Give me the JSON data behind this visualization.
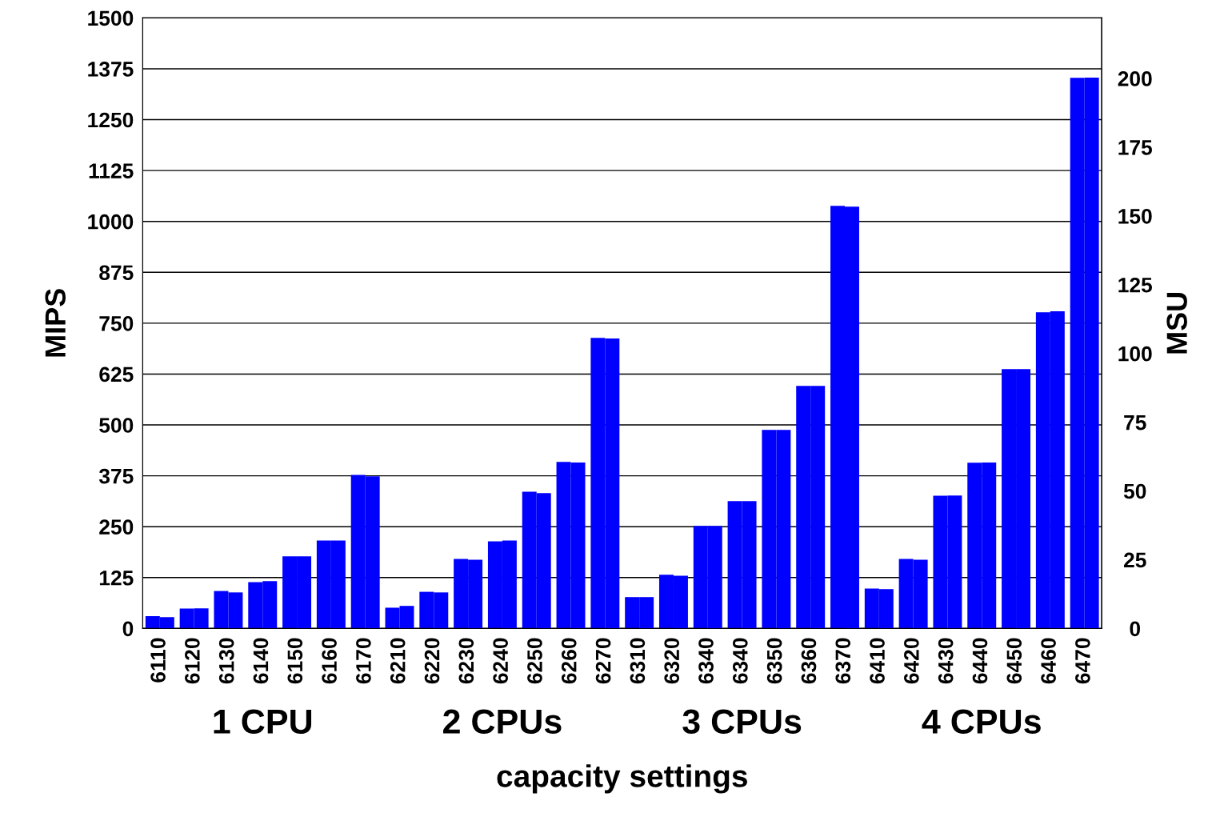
{
  "chart_data": {
    "type": "bar",
    "xlabel": "capacity settings",
    "ylabel": "MIPS",
    "y2label": "MSU",
    "categories": [
      "6110",
      "6120",
      "6130",
      "6140",
      "6150",
      "6160",
      "6170",
      "6210",
      "6220",
      "6230",
      "6240",
      "6250",
      "6260",
      "6270",
      "6310",
      "6320",
      "6340",
      "6340",
      "6350",
      "6360",
      "6370",
      "6410",
      "6420",
      "6430",
      "6440",
      "6450",
      "6460",
      "6470"
    ],
    "series": [
      {
        "color": "#0000ff",
        "values": [
          30,
          49,
          92,
          114,
          177,
          216,
          377,
          51,
          90,
          171,
          214,
          336,
          409,
          714,
          77,
          132,
          252,
          313,
          488,
          596,
          1038,
          98,
          171,
          326,
          407,
          637,
          777,
          1353
        ]
      },
      {
        "color": "#0000ff",
        "axis": "y2",
        "values": [
          4.1,
          7.3,
          13.1,
          17.2,
          26.2,
          32,
          55.3,
          8.2,
          13.1,
          25,
          32,
          49.2,
          60.3,
          105.4,
          11.4,
          19.2,
          37.3,
          46.3,
          72.2,
          88.2,
          153.4,
          14.3,
          25,
          48.3,
          60.3,
          94.3,
          115.3,
          200.3
        ]
      }
    ],
    "ylim": [
      0,
      1500
    ],
    "yticks": [
      0,
      125,
      250,
      375,
      500,
      625,
      750,
      875,
      1000,
      1125,
      1250,
      1375,
      1500
    ],
    "y2lim": [
      0,
      222
    ],
    "y2ticks": [
      0,
      25,
      50,
      75,
      100,
      125,
      150,
      175,
      200
    ],
    "grid": "y",
    "annotations": [
      "1 CPU",
      "2 CPUs",
      "3 CPUs",
      "4 CPUs"
    ]
  }
}
